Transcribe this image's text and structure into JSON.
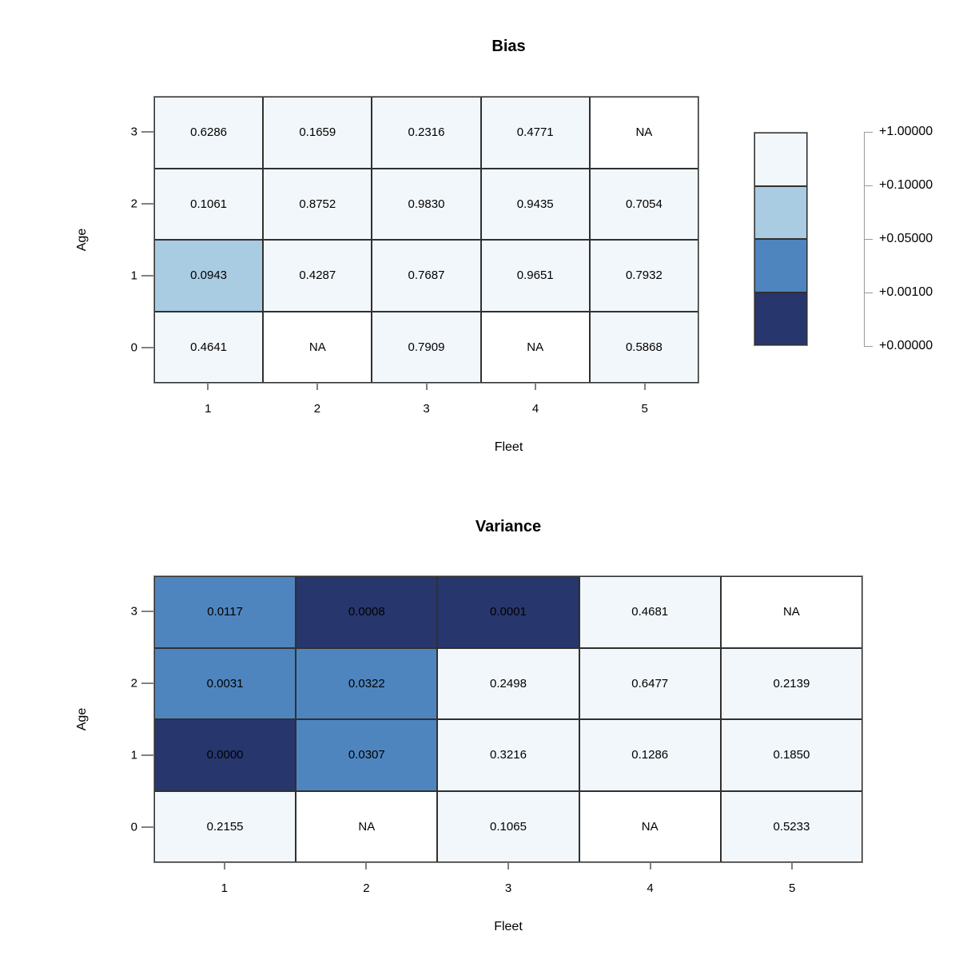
{
  "palette": {
    "breaks": [
      0,
      0.001,
      0.05,
      0.1,
      1.0
    ],
    "colors": [
      "#27366d",
      "#4e85bf",
      "#a9cce3",
      "#f2f7fb"
    ],
    "na_color": "#ffffff",
    "grid_line": "#303030",
    "frame_line": "#888888"
  },
  "legend": {
    "labels": [
      "+1.00000",
      "+0.10000",
      "+0.05000",
      "+0.00100",
      "+0.00000"
    ]
  },
  "chart_data": [
    {
      "type": "heatmap",
      "title": "Bias",
      "xlabel": "Fleet",
      "ylabel": "Age",
      "x_categories": [
        "1",
        "2",
        "3",
        "4",
        "5"
      ],
      "y_categories_top_to_bottom": [
        "3",
        "2",
        "1",
        "0"
      ],
      "rows_top_to_bottom": [
        {
          "age": "3",
          "values": [
            0.6286,
            0.1659,
            0.2316,
            0.4771,
            null
          ]
        },
        {
          "age": "2",
          "values": [
            0.1061,
            0.8752,
            0.983,
            0.9435,
            0.7054
          ]
        },
        {
          "age": "1",
          "values": [
            0.0943,
            0.4287,
            0.7687,
            0.9651,
            0.7932
          ]
        },
        {
          "age": "0",
          "values": [
            0.4641,
            null,
            0.7909,
            null,
            0.5868
          ]
        }
      ],
      "na_text": "NA",
      "value_decimals": 4
    },
    {
      "type": "heatmap",
      "title": "Variance",
      "xlabel": "Fleet",
      "ylabel": "Age",
      "x_categories": [
        "1",
        "2",
        "3",
        "4",
        "5"
      ],
      "y_categories_top_to_bottom": [
        "3",
        "2",
        "1",
        "0"
      ],
      "rows_top_to_bottom": [
        {
          "age": "3",
          "values": [
            0.0117,
            0.0008,
            0.0001,
            0.4681,
            null
          ]
        },
        {
          "age": "2",
          "values": [
            0.0031,
            0.0322,
            0.2498,
            0.6477,
            0.2139
          ]
        },
        {
          "age": "1",
          "values": [
            0.0,
            0.0307,
            0.3216,
            0.1286,
            0.185
          ]
        },
        {
          "age": "0",
          "values": [
            0.2155,
            null,
            0.1065,
            null,
            0.5233
          ]
        }
      ],
      "na_text": "NA",
      "value_decimals": 4
    }
  ]
}
